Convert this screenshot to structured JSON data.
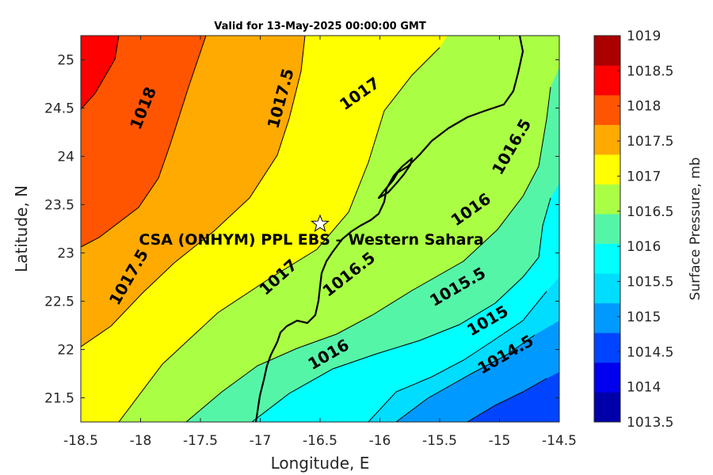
{
  "title": "Valid for 13-May-2025 00:00:00 GMT",
  "axes": {
    "xlabel": "Longitude, E",
    "ylabel": "Latitude, N",
    "xlim": [
      -18.5,
      -14.5
    ],
    "ylim": [
      21.25,
      25.25
    ],
    "xticks": [
      "-18.5",
      "-18",
      "-17.5",
      "-17",
      "-16.5",
      "-16",
      "-15.5",
      "-15",
      "-14.5"
    ],
    "yticks": [
      "21.5",
      "22",
      "22.5",
      "23",
      "23.5",
      "24",
      "24.5",
      "25"
    ]
  },
  "colorbar": {
    "label": "Surface Pressure, mb",
    "levels": [
      "1013.5",
      "1014",
      "1014.5",
      "1015",
      "1015.5",
      "1016",
      "1016.5",
      "1017",
      "1017.5",
      "1018",
      "1018.5",
      "1019"
    ],
    "colors": [
      "#0000aa",
      "#0000ee",
      "#0044ff",
      "#0099ff",
      "#00ddff",
      "#00ffff",
      "#55f5a8",
      "#aaff44",
      "#ffff00",
      "#ffaa00",
      "#ff5500",
      "#ff0000",
      "#aa0000"
    ]
  },
  "site": {
    "label": "CSA (ONHYM) PPL EBS – Western Sahara",
    "lon": -16.5,
    "lat": 23.3
  },
  "contour_labels": [
    {
      "text": "1018",
      "lon": -17.98,
      "lat": 24.5,
      "angle": -68
    },
    {
      "text": "1017.5",
      "lon": -16.83,
      "lat": 24.6,
      "angle": -75
    },
    {
      "text": "1017",
      "lon": -16.17,
      "lat": 24.65,
      "angle": -35
    },
    {
      "text": "1016.5",
      "lon": -14.9,
      "lat": 24.1,
      "angle": -60
    },
    {
      "text": "1017.5",
      "lon": -18.1,
      "lat": 22.75,
      "angle": -60
    },
    {
      "text": "1017",
      "lon": -16.85,
      "lat": 22.75,
      "angle": -42
    },
    {
      "text": "1016",
      "lon": -15.24,
      "lat": 23.45,
      "angle": -35
    },
    {
      "text": "1016.5",
      "lon": -16.26,
      "lat": 22.78,
      "angle": -38
    },
    {
      "text": "1015.5",
      "lon": -15.35,
      "lat": 22.65,
      "angle": -30
    },
    {
      "text": "1016",
      "lon": -16.43,
      "lat": 21.95,
      "angle": -30
    },
    {
      "text": "1015",
      "lon": -15.1,
      "lat": 22.3,
      "angle": -30
    },
    {
      "text": "1014.5",
      "lon": -14.95,
      "lat": 21.95,
      "angle": -30
    }
  ]
}
